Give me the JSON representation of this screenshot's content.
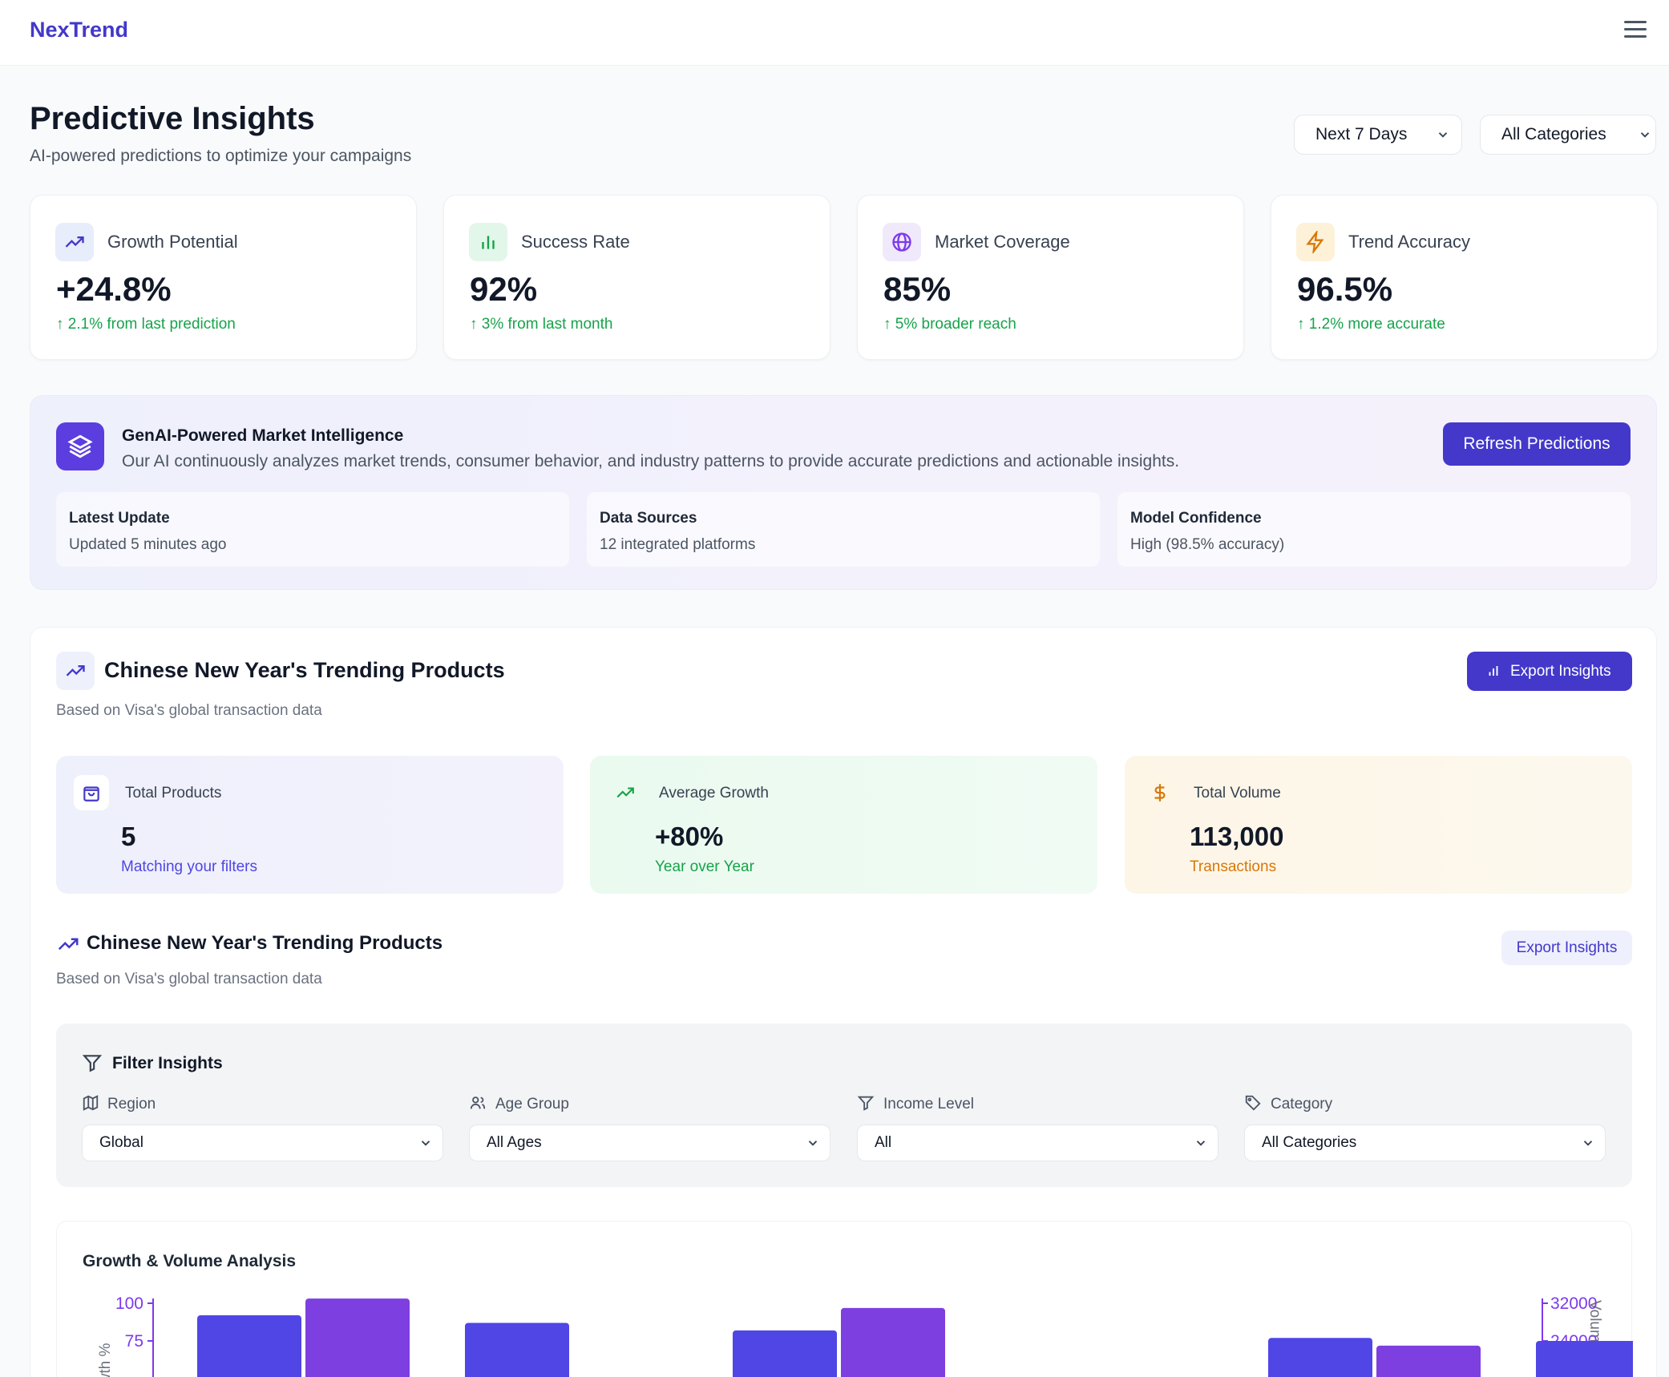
{
  "app": {
    "logo": "NexTrend"
  },
  "header": {
    "title": "Predictive Insights",
    "subtitle": "AI-powered predictions to optimize your campaigns",
    "time_range": "Next 7 Days",
    "category": "All Categories"
  },
  "stats": [
    {
      "label": "Growth Potential",
      "value": "+24.8%",
      "change": "↑ 2.1% from last prediction",
      "icon": "trending-up-icon"
    },
    {
      "label": "Success Rate",
      "value": "92%",
      "change": "↑ 3% from last month",
      "icon": "bar-chart-icon"
    },
    {
      "label": "Market Coverage",
      "value": "85%",
      "change": "↑ 5% broader reach",
      "icon": "globe-icon"
    },
    {
      "label": "Trend Accuracy",
      "value": "96.5%",
      "change": "↑ 1.2% more accurate",
      "icon": "lightning-icon"
    }
  ],
  "ai": {
    "title": "GenAI-Powered Market Intelligence",
    "description": "Our AI continuously analyzes market trends, consumer behavior, and industry patterns to provide accurate predictions and actionable insights.",
    "refresh_label": "Refresh Predictions",
    "details": [
      {
        "title": "Latest Update",
        "value": "Updated 5 minutes ago"
      },
      {
        "title": "Data Sources",
        "value": "12 integrated platforms"
      },
      {
        "title": "Model Confidence",
        "value": "High (98.5% accuracy)"
      }
    ]
  },
  "trending": {
    "title": "Chinese New Year's Trending Products",
    "subtitle": "Based on Visa's global transaction data",
    "export_label": "Export Insights",
    "metrics": [
      {
        "label": "Total Products",
        "value": "5",
        "sub": "Matching your filters",
        "icon": "shopping-bag-icon"
      },
      {
        "label": "Average Growth",
        "value": "+80%",
        "sub": "Year over Year",
        "icon": "trending-up-icon"
      },
      {
        "label": "Total Volume",
        "value": "113,000",
        "sub": "Transactions",
        "icon": "dollar-icon"
      }
    ]
  },
  "section2": {
    "title": "Chinese New Year's Trending Products",
    "subtitle": "Based on Visa's global transaction data",
    "export_label": "Export Insights"
  },
  "filters": {
    "title": "Filter Insights",
    "items": [
      {
        "label": "Region",
        "value": "Global",
        "icon": "map-icon"
      },
      {
        "label": "Age Group",
        "value": "All Ages",
        "icon": "users-icon"
      },
      {
        "label": "Income Level",
        "value": "All",
        "icon": "filter-icon"
      },
      {
        "label": "Category",
        "value": "All Categories",
        "icon": "tag-icon"
      }
    ]
  },
  "colors": {
    "accent": "#4338ca",
    "growth_bar": "#4f46e5",
    "volume_bar": "#7e3fe0",
    "positive": "#16a34a"
  },
  "chart_data": {
    "type": "bar",
    "title": "Growth & Volume Analysis",
    "ylabel_left": "Growth %",
    "ylabel_right": "Volume",
    "left_ticks": [
      "100",
      "75"
    ],
    "right_ticks": [
      "32000",
      "24000"
    ],
    "ylim_left": [
      0,
      100
    ],
    "ylim_right": [
      0,
      32000
    ],
    "series": [
      {
        "axis": "left",
        "values": [
          92,
          87,
          82,
          null,
          77,
          75
        ]
      },
      {
        "axis": "right",
        "values": [
          33000,
          null,
          31000,
          null,
          23000,
          null
        ]
      }
    ]
  }
}
